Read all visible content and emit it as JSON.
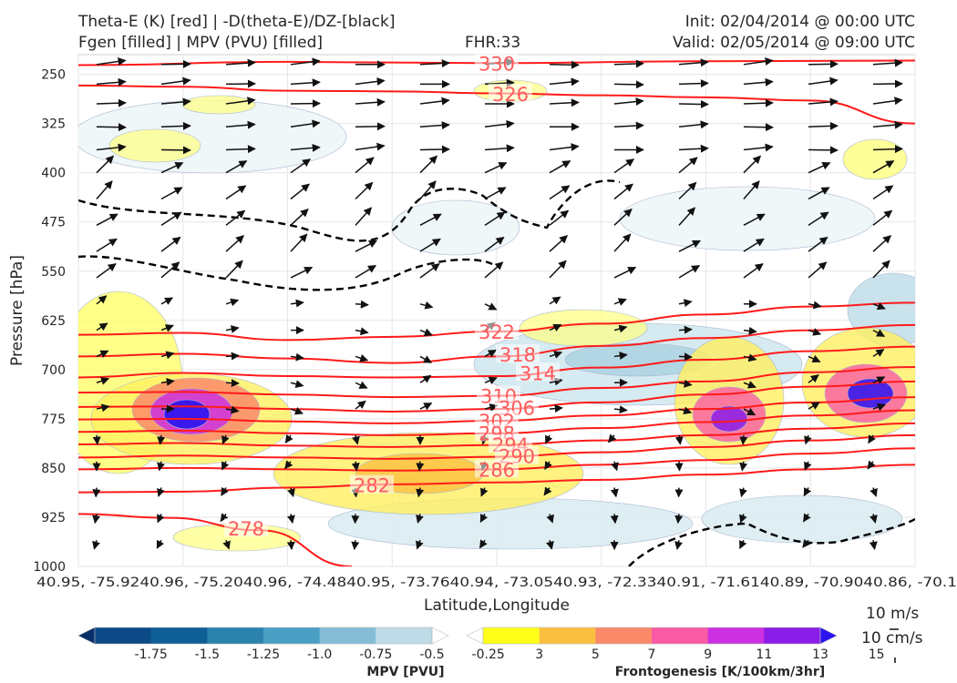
{
  "header": {
    "title_line1": "Theta-E (K) [red] | -D(theta-E)/DZ-[black]",
    "title_line2": "Fgen [filled] | MPV (PVU) [filled]",
    "fhr": "FHR:33",
    "init": "Init: 02/04/2014 @ 00:00 UTC",
    "valid": "Valid: 02/05/2014 @ 09:00 UTC"
  },
  "chart_data": {
    "type": "cross-section",
    "xlabel": "Latitude,Longitude",
    "ylabel": "Pressure [hPa]",
    "x_ticks": [
      "40.95, -75.92",
      "40.96, -75.20",
      "40.96, -74.48",
      "40.95, -73.76",
      "40.94, -73.05",
      "40.93, -72.33",
      "40.91, -71.61",
      "40.89, -70.90",
      "40.86, -70.1"
    ],
    "x_tick_labels_text": "40.95, -75.9240.96, -75.2040.96, -74.4840.95, -73.7640.94, -73.0540.93, -72.3340.91, -71.6140.89, -70.9040.86, -70.1",
    "y_ticks": [
      250,
      325,
      400,
      475,
      550,
      625,
      700,
      775,
      850,
      925,
      1000
    ],
    "ylim": [
      220,
      1000
    ],
    "grid": true,
    "theta_e_contours": [
      {
        "value": "330",
        "p": [
          236,
          231,
          233,
          230,
          229
        ]
      },
      {
        "value": "326",
        "p": [
          267,
          269,
          275,
          276,
          279,
          282,
          285,
          290,
          325
        ]
      },
      {
        "value": "322",
        "p": [
          647,
          644,
          655,
          650,
          642,
          630,
          616,
          604,
          598
        ]
      },
      {
        "value": "318",
        "p": [
          680,
          676,
          683,
          690,
          680,
          664,
          652,
          640,
          632
        ]
      },
      {
        "value": "314",
        "p": [
          712,
          705,
          710,
          712,
          710,
          697,
          685,
          672,
          665
        ]
      },
      {
        "value": "310",
        "p": [
          735,
          734,
          738,
          742,
          740,
          728,
          718,
          704,
          696
        ]
      },
      {
        "value": "306",
        "p": [
          757,
          756,
          760,
          764,
          760,
          750,
          738,
          726,
          718
        ]
      },
      {
        "value": "302",
        "p": [
          776,
          775,
          779,
          782,
          778,
          770,
          760,
          750,
          742
        ]
      },
      {
        "value": "298",
        "p": [
          795,
          793,
          797,
          800,
          797,
          789,
          780,
          770,
          762
        ]
      },
      {
        "value": "294",
        "p": [
          814,
          812,
          816,
          818,
          815,
          808,
          800,
          790,
          782
        ]
      },
      {
        "value": "290",
        "p": [
          834,
          831,
          834,
          836,
          833,
          826,
          818,
          808,
          800
        ]
      },
      {
        "value": "286",
        "p": [
          852,
          850,
          852,
          854,
          852,
          845,
          838,
          828,
          820
        ]
      },
      {
        "value": "282",
        "p": [
          887,
          886,
          880,
          875,
          872,
          868,
          860,
          852,
          845
        ]
      },
      {
        "value": "278",
        "p": [
          920,
          926,
          945,
          1000
        ]
      }
    ],
    "dthetae_dz_contour_label": "black dashed (negative -D(theta-E)/DZ)",
    "mpv_colorbar": {
      "title": "MPV [PVU]",
      "levels": [
        "-1.75",
        "-1.5",
        "-1.25",
        "-1.0",
        "-0.75",
        "-0.5",
        "-0.25"
      ],
      "colors": [
        "#08306b",
        "#0b4a86",
        "#0e5f96",
        "#2a82ad",
        "#4aa0c4",
        "#85bdd6",
        "#bddce8",
        "#ffffff"
      ]
    },
    "fgen_colorbar": {
      "title": "Frontogenesis [K/100km/3hr]",
      "levels": [
        "3",
        "5",
        "7",
        "9",
        "11",
        "13",
        "15"
      ],
      "colors": [
        "#ffffff",
        "#ffff1a",
        "#fbbf3f",
        "#fb8a6a",
        "#fb5aa5",
        "#cc30e0",
        "#8a1de8",
        "#2a14f0"
      ]
    },
    "wind_key": {
      "horizontal": "10 m/s",
      "vertical": "10 cm/s"
    }
  }
}
